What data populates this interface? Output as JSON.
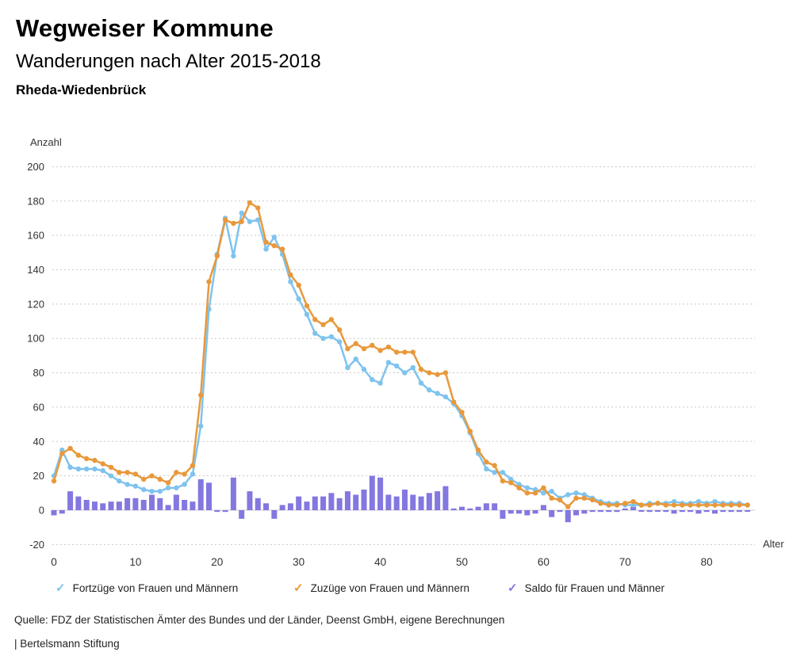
{
  "header": {
    "title": "Wegweiser Kommune",
    "subtitle": "Wanderungen nach Alter 2015-2018",
    "municipality": "Rheda-Wiedenbrück"
  },
  "chart_data": {
    "type": "line+bar",
    "title": "Wanderungen nach Alter 2015-2018",
    "xlabel": "Alter",
    "ylabel": "Anzahl",
    "xlim": [
      0,
      85
    ],
    "ylim": [
      -20,
      200
    ],
    "x_ticks": [
      0,
      10,
      20,
      30,
      40,
      50,
      60,
      70,
      80
    ],
    "y_ticks": [
      200,
      180,
      160,
      140,
      120,
      100,
      80,
      60,
      40,
      20,
      0,
      -20
    ],
    "grid": "dotted horizontal, solid zero line",
    "legend_position": "bottom",
    "ages": [
      0,
      1,
      2,
      3,
      4,
      5,
      6,
      7,
      8,
      9,
      10,
      11,
      12,
      13,
      14,
      15,
      16,
      17,
      18,
      19,
      20,
      21,
      22,
      23,
      24,
      25,
      26,
      27,
      28,
      29,
      30,
      31,
      32,
      33,
      34,
      35,
      36,
      37,
      38,
      39,
      40,
      41,
      42,
      43,
      44,
      45,
      46,
      47,
      48,
      49,
      50,
      51,
      52,
      53,
      54,
      55,
      56,
      57,
      58,
      59,
      60,
      61,
      62,
      63,
      64,
      65,
      66,
      67,
      68,
      69,
      70,
      71,
      72,
      73,
      74,
      75,
      76,
      77,
      78,
      79,
      80,
      81,
      82,
      83,
      84,
      85
    ],
    "series": [
      {
        "name": "Fortzüge von Frauen und Männern",
        "type": "line",
        "color": "#7EC3EE",
        "values": [
          20,
          35,
          25,
          24,
          24,
          24,
          23,
          20,
          17,
          15,
          14,
          12,
          11,
          11,
          13,
          13,
          15,
          21,
          49,
          117,
          149,
          170,
          148,
          173,
          168,
          169,
          152,
          159,
          149,
          133,
          123,
          114,
          103,
          100,
          101,
          98,
          83,
          88,
          82,
          76,
          74,
          86,
          84,
          80,
          83,
          74,
          70,
          68,
          66,
          62,
          55,
          45,
          33,
          24,
          22,
          22,
          18,
          15,
          13,
          12,
          10,
          11,
          7,
          9,
          10,
          9,
          7,
          5,
          4,
          4,
          3,
          3,
          3,
          4,
          4,
          4,
          5,
          4,
          4,
          5,
          4,
          5,
          4,
          4,
          4,
          3
        ]
      },
      {
        "name": "Zuzüge von Frauen und Männern",
        "type": "line",
        "color": "#E8983B",
        "values": [
          17,
          33,
          36,
          32,
          30,
          29,
          27,
          25,
          22,
          22,
          21,
          18,
          20,
          18,
          16,
          22,
          21,
          26,
          67,
          133,
          148,
          169,
          167,
          168,
          179,
          176,
          156,
          154,
          152,
          137,
          131,
          119,
          111,
          108,
          111,
          105,
          94,
          97,
          94,
          96,
          93,
          95,
          92,
          92,
          92,
          82,
          80,
          79,
          80,
          63,
          57,
          46,
          35,
          28,
          26,
          17,
          16,
          13,
          10,
          10,
          13,
          7,
          6,
          2,
          7,
          7,
          6,
          4,
          3,
          3,
          4,
          5,
          3,
          3,
          4,
          3,
          3,
          3,
          3,
          3,
          3,
          3,
          3,
          3,
          3,
          3
        ]
      },
      {
        "name": "Saldo für Frauen und Männer",
        "type": "bar",
        "color": "#8377E0",
        "values": [
          -3,
          -2,
          11,
          8,
          6,
          5,
          4,
          5,
          5,
          7,
          7,
          6,
          9,
          7,
          3,
          9,
          6,
          5,
          18,
          16,
          -1,
          -1,
          19,
          -5,
          11,
          7,
          4,
          -5,
          3,
          4,
          8,
          5,
          8,
          8,
          10,
          7,
          11,
          9,
          12,
          20,
          19,
          9,
          8,
          12,
          9,
          8,
          10,
          11,
          14,
          1,
          2,
          1,
          2,
          4,
          4,
          -5,
          -2,
          -2,
          -3,
          -2,
          3,
          -4,
          -1,
          -7,
          -3,
          -2,
          -1,
          -1,
          -1,
          -1,
          1,
          2,
          0,
          -1,
          0,
          -1,
          -2,
          -1,
          -1,
          -2,
          -1,
          -2,
          -1,
          -1,
          -1,
          0
        ]
      }
    ]
  },
  "legend": {
    "marker_glyph": "✓"
  },
  "footer": {
    "source": "Quelle: FDZ der Statistischen Ämter des Bundes und der Länder, Deenst GmbH, eigene Berechnungen",
    "brand": "| Bertelsmann Stiftung"
  }
}
